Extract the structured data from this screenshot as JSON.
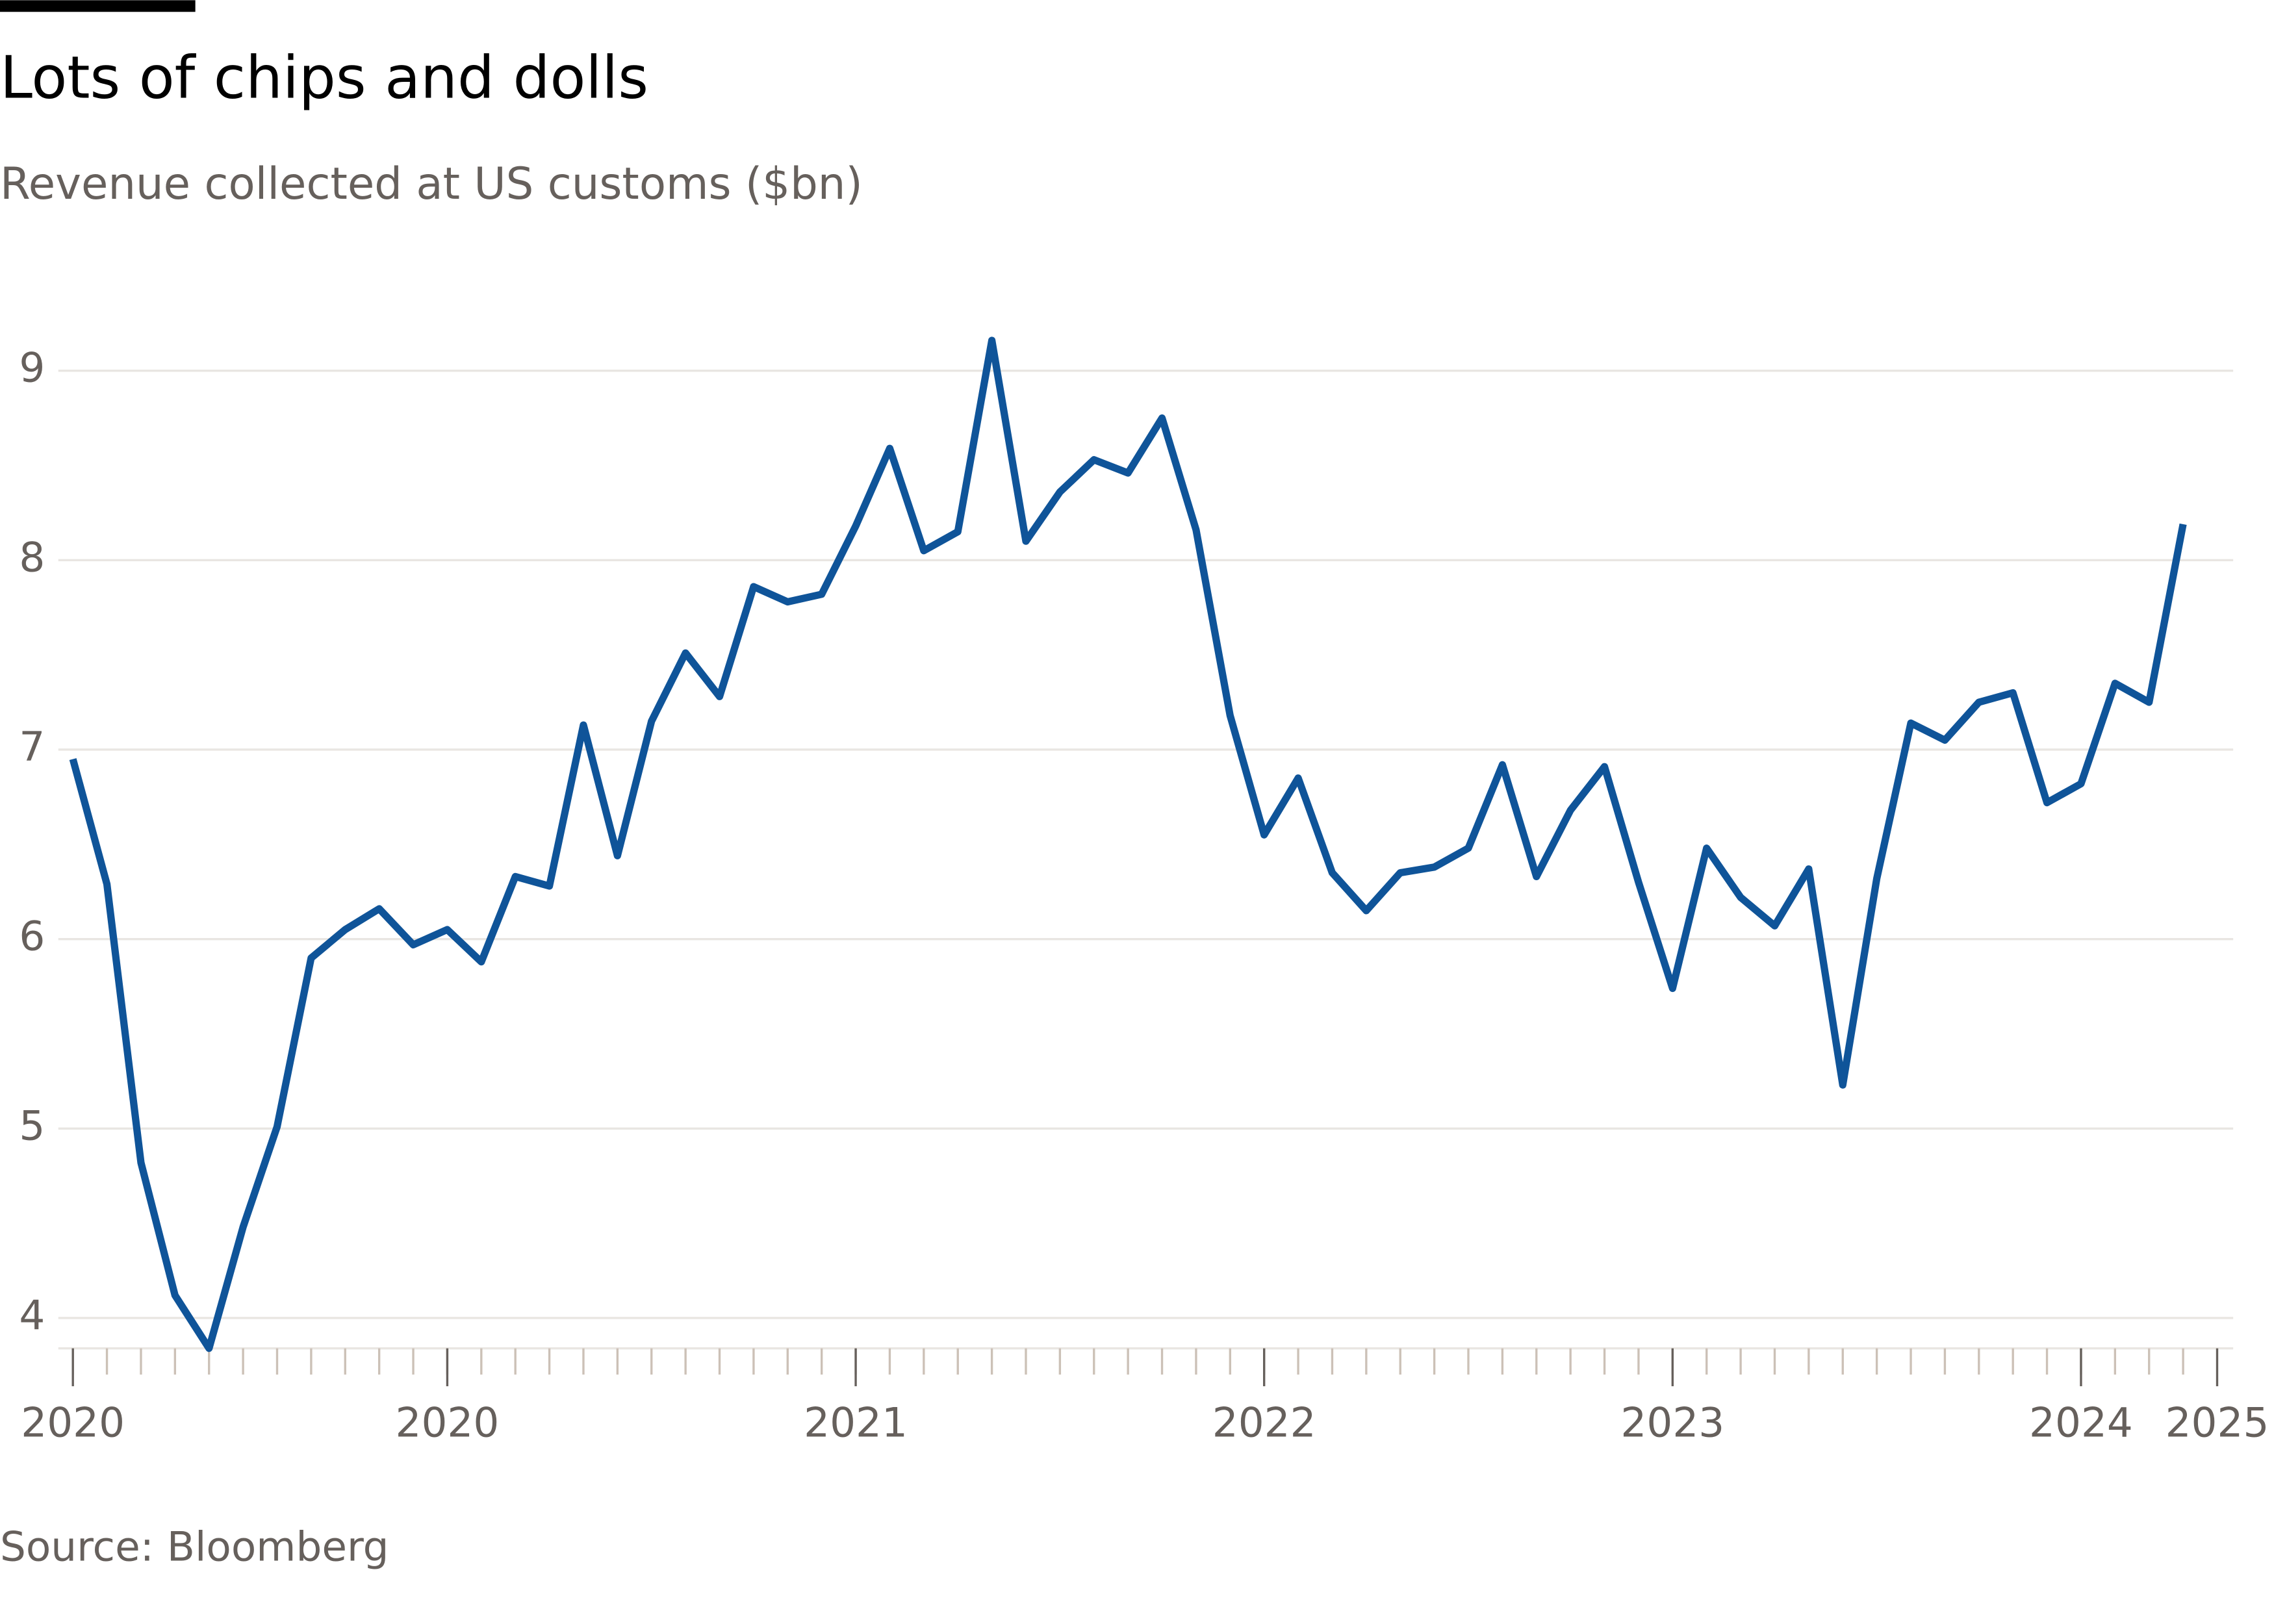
{
  "chart_data": {
    "type": "line",
    "title": "Lots of chips and dolls",
    "subtitle": "Revenue collected at US customs ($bn)",
    "source": "Source: Bloomberg",
    "x": [
      0,
      1,
      2,
      3,
      4,
      5,
      6,
      7,
      8,
      9,
      10,
      11,
      12,
      13,
      14,
      15,
      16,
      17,
      18,
      19,
      20,
      21,
      22,
      23,
      24,
      25,
      26,
      27,
      28,
      29,
      30,
      31,
      32,
      33,
      34,
      35,
      36,
      37,
      38,
      39,
      40,
      41,
      42,
      43,
      44,
      45,
      46,
      47,
      48,
      49,
      50,
      51,
      52,
      53,
      54,
      55,
      56,
      57,
      58,
      59,
      60,
      61,
      62
    ],
    "series": [
      {
        "color": "#0f5499",
        "values": [
          6.95,
          6.29,
          4.82,
          4.12,
          3.84,
          4.48,
          5.01,
          5.9,
          6.05,
          6.16,
          5.97,
          6.05,
          5.88,
          6.33,
          6.28,
          7.13,
          6.44,
          7.15,
          7.51,
          7.28,
          7.86,
          7.78,
          7.82,
          8.18,
          8.59,
          8.05,
          8.15,
          9.16,
          8.1,
          8.36,
          8.53,
          8.46,
          8.75,
          8.16,
          7.18,
          6.55,
          6.85,
          6.35,
          6.15,
          6.35,
          6.38,
          6.48,
          6.92,
          6.33,
          6.68,
          6.91,
          6.3,
          5.74,
          6.48,
          6.22,
          6.07,
          6.37,
          5.23,
          6.32,
          7.14,
          7.05,
          7.25,
          7.3,
          6.72,
          6.82,
          7.35,
          7.25,
          8.19
        ]
      }
    ],
    "xlim": [
      0,
      63
    ],
    "xticks": [
      {
        "value": 0,
        "label": "2020"
      },
      {
        "value": 11,
        "label": "2020"
      },
      {
        "value": 23,
        "label": "2021"
      },
      {
        "value": 35,
        "label": "2022"
      },
      {
        "value": 47,
        "label": "2023"
      },
      {
        "value": 59,
        "label": "2024"
      },
      {
        "value": 63,
        "label": "2025"
      }
    ],
    "ylim": [
      3.84,
      9.3
    ],
    "yticks": [
      4,
      5,
      6,
      7,
      8,
      9
    ],
    "grid": true
  }
}
